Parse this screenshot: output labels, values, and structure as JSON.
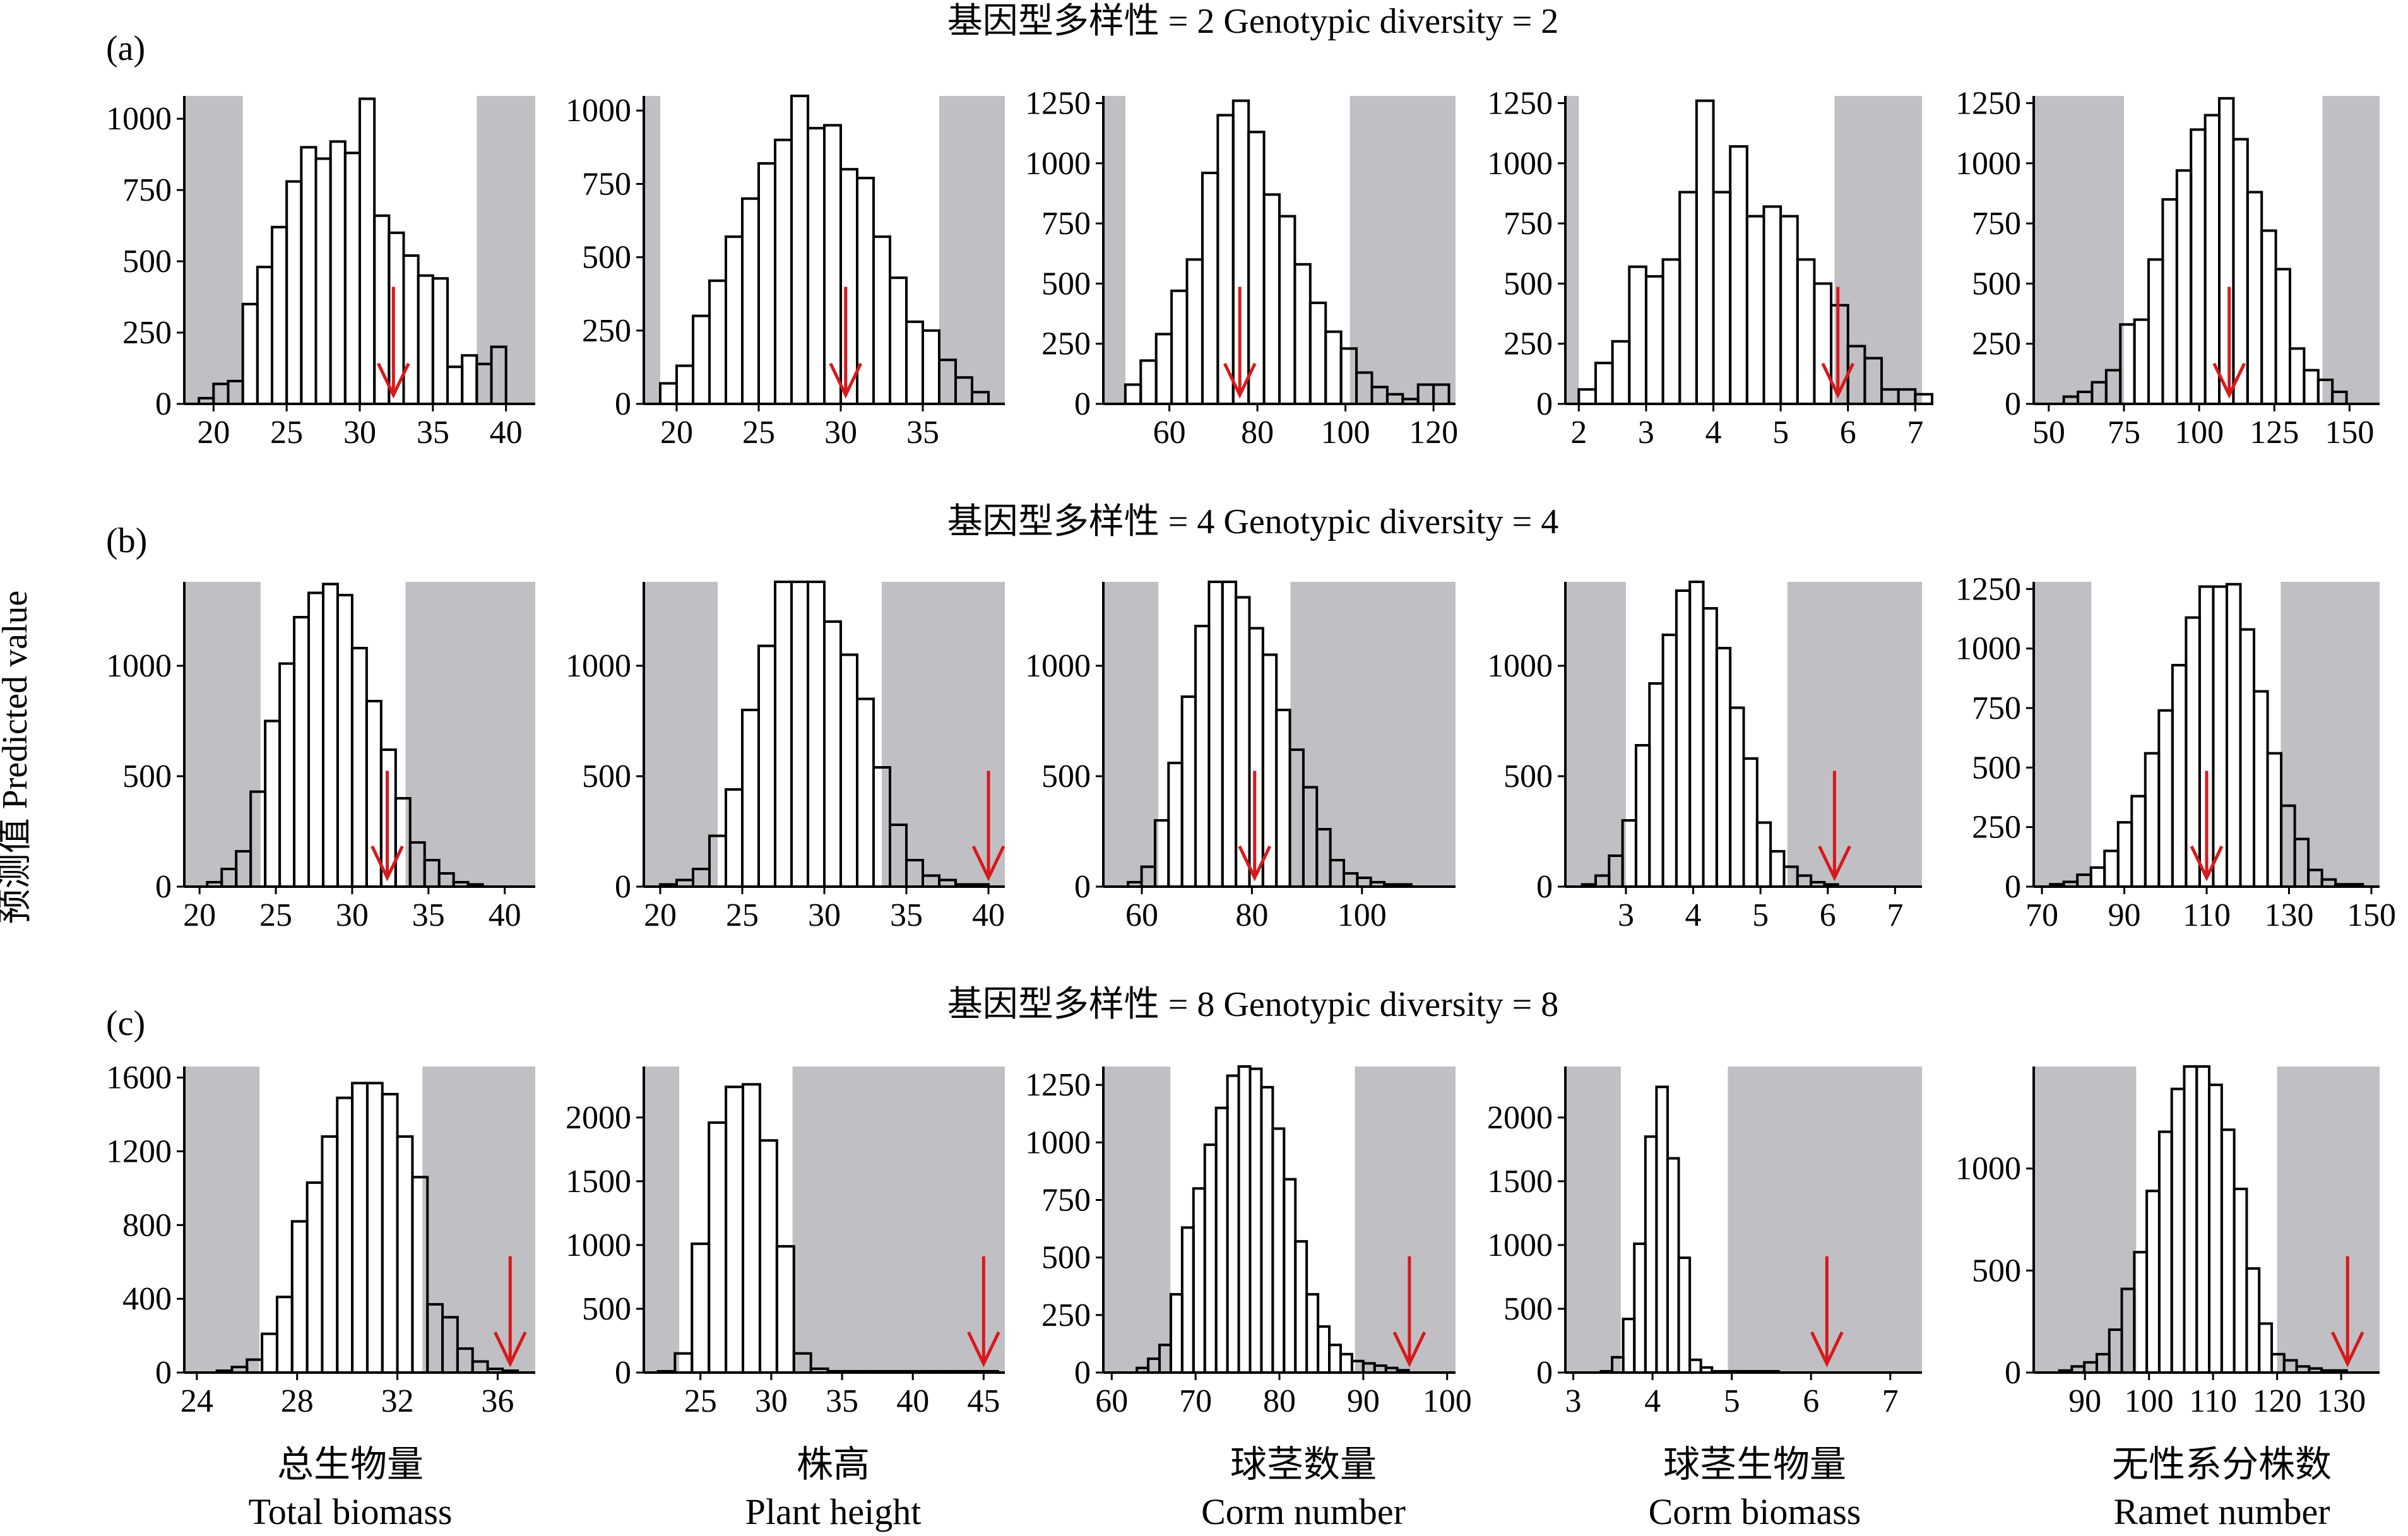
{
  "figure": {
    "ylabel": "预测值 Predicted value",
    "columns": [
      {
        "cn": "总生物量",
        "en": "Total biomass"
      },
      {
        "cn": "株高",
        "en": "Plant height"
      },
      {
        "cn": "球茎数量",
        "en": "Corm number"
      },
      {
        "cn": "球茎生物量",
        "en": "Corm biomass"
      },
      {
        "cn": "无性系分株数",
        "en": "Ramet number"
      }
    ],
    "rows": [
      {
        "label": "(a)",
        "title": "基因型多样性 = 2  Genotypic diversity = 2"
      },
      {
        "label": "(b)",
        "title": "基因型多样性 = 4  Genotypic diversity = 4"
      },
      {
        "label": "(c)",
        "title": "基因型多样性 = 8  Genotypic diversity = 8"
      }
    ],
    "colors": {
      "shade": "#c0bfc3",
      "bar_fill": "#ffffff",
      "bar_stroke": "#000000",
      "arrow": "#d7191c"
    }
  },
  "chart_data": [
    {
      "type": "bar",
      "row": 0,
      "col": 0,
      "xlim": [
        18,
        42
      ],
      "ylim": [
        0,
        1080
      ],
      "xticks": [
        20,
        25,
        30,
        35,
        40
      ],
      "yticks": [
        0,
        250,
        500,
        750,
        1000
      ],
      "shade_left": [
        18,
        22
      ],
      "shade_right": [
        38,
        42
      ],
      "arrow_x": 32.3,
      "bin_start": 19,
      "bin_width": 1,
      "values": [
        20,
        70,
        80,
        350,
        480,
        620,
        780,
        900,
        860,
        920,
        880,
        1070,
        660,
        600,
        520,
        450,
        440,
        130,
        170,
        140,
        200
      ]
    },
    {
      "type": "bar",
      "row": 0,
      "col": 1,
      "xlim": [
        18,
        40
      ],
      "ylim": [
        0,
        1050
      ],
      "xticks": [
        20,
        25,
        30,
        35
      ],
      "yticks": [
        0,
        250,
        500,
        750,
        1000
      ],
      "shade_left": [
        18,
        19
      ],
      "shade_right": [
        36,
        40
      ],
      "arrow_x": 30.3,
      "bin_start": 19,
      "bin_width": 1,
      "values": [
        70,
        130,
        300,
        420,
        570,
        700,
        820,
        900,
        1050,
        940,
        950,
        800,
        770,
        570,
        430,
        280,
        250,
        150,
        90,
        40
      ]
    },
    {
      "type": "bar",
      "row": 0,
      "col": 2,
      "xlim": [
        45,
        125
      ],
      "ylim": [
        0,
        1280
      ],
      "xticks": [
        60,
        80,
        100,
        120
      ],
      "yticks": [
        0,
        250,
        500,
        750,
        1000,
        1250
      ],
      "shade_left": [
        45,
        50
      ],
      "shade_right": [
        101,
        125
      ],
      "arrow_x": 76,
      "bin_start": 50,
      "bin_width": 3.5,
      "values": [
        80,
        180,
        290,
        470,
        600,
        960,
        1200,
        1260,
        1130,
        870,
        780,
        580,
        420,
        300,
        230,
        130,
        70,
        40,
        20,
        80,
        80
      ]
    },
    {
      "type": "bar",
      "row": 0,
      "col": 3,
      "xlim": [
        1.8,
        7.1
      ],
      "ylim": [
        0,
        1280
      ],
      "xticks": [
        2,
        3,
        4,
        5,
        6,
        7
      ],
      "yticks": [
        0,
        250,
        500,
        750,
        1000,
        1250
      ],
      "shade_left": [
        1.8,
        2.0
      ],
      "shade_right": [
        5.8,
        7.1
      ],
      "arrow_x": 5.85,
      "bin_start": 2.0,
      "bin_width": 0.25,
      "values": [
        60,
        170,
        260,
        570,
        530,
        600,
        880,
        1260,
        880,
        1070,
        780,
        820,
        780,
        600,
        500,
        410,
        240,
        190,
        60,
        60,
        40
      ]
    },
    {
      "type": "bar",
      "row": 0,
      "col": 4,
      "xlim": [
        45,
        160
      ],
      "ylim": [
        0,
        1280
      ],
      "xticks": [
        50,
        75,
        100,
        125,
        150
      ],
      "yticks": [
        0,
        250,
        500,
        750,
        1000,
        1250
      ],
      "shade_left": [
        45,
        75
      ],
      "shade_right": [
        141,
        160
      ],
      "arrow_x": 110,
      "bin_start": 55,
      "bin_width": 4.7,
      "values": [
        30,
        50,
        90,
        140,
        330,
        350,
        600,
        850,
        970,
        1140,
        1200,
        1270,
        1100,
        880,
        720,
        560,
        230,
        140,
        100,
        50
      ]
    },
    {
      "type": "bar",
      "row": 1,
      "col": 0,
      "xlim": [
        19,
        42
      ],
      "ylim": [
        0,
        1380
      ],
      "xticks": [
        20,
        25,
        30,
        35,
        40
      ],
      "yticks": [
        0,
        500,
        1000
      ],
      "shade_left": [
        19,
        24
      ],
      "shade_right": [
        33.5,
        42
      ],
      "arrow_x": 32.3,
      "bin_start": 20.5,
      "bin_width": 0.95,
      "values": [
        20,
        80,
        160,
        430,
        750,
        1010,
        1220,
        1330,
        1370,
        1320,
        1080,
        840,
        620,
        400,
        200,
        120,
        60,
        20,
        10
      ]
    },
    {
      "type": "bar",
      "row": 1,
      "col": 1,
      "xlim": [
        19,
        41
      ],
      "ylim": [
        0,
        1380
      ],
      "xticks": [
        20,
        25,
        30,
        35,
        40
      ],
      "yticks": [
        0,
        500,
        1000
      ],
      "shade_left": [
        19,
        23.5
      ],
      "shade_right": [
        33.5,
        41
      ],
      "arrow_x": 40,
      "bin_start": 20,
      "bin_width": 1,
      "values": [
        10,
        30,
        80,
        230,
        440,
        800,
        1090,
        1380,
        1380,
        1380,
        1200,
        1050,
        850,
        540,
        280,
        120,
        50,
        30,
        10,
        10
      ]
    },
    {
      "type": "bar",
      "row": 1,
      "col": 2,
      "xlim": [
        53,
        117
      ],
      "ylim": [
        0,
        1380
      ],
      "xticks": [
        60,
        80,
        100
      ],
      "yticks": [
        0,
        500,
        1000
      ],
      "shade_left": [
        53,
        63
      ],
      "shade_right": [
        87,
        117
      ],
      "arrow_x": 80.5,
      "bin_start": 57.5,
      "bin_width": 2.45,
      "values": [
        20,
        90,
        300,
        560,
        860,
        1180,
        1380,
        1380,
        1310,
        1170,
        1050,
        800,
        620,
        450,
        260,
        120,
        60,
        40,
        20,
        10,
        10
      ]
    },
    {
      "type": "bar",
      "row": 1,
      "col": 3,
      "xlim": [
        2.1,
        7.4
      ],
      "ylim": [
        0,
        1380
      ],
      "xticks": [
        3,
        4,
        5,
        6,
        7
      ],
      "yticks": [
        0,
        500,
        1000
      ],
      "shade_left": [
        2.1,
        3.0
      ],
      "shade_right": [
        5.4,
        7.4
      ],
      "arrow_x": 6.1,
      "bin_start": 2.35,
      "bin_width": 0.2,
      "values": [
        10,
        50,
        140,
        300,
        640,
        920,
        1140,
        1340,
        1380,
        1260,
        1080,
        810,
        580,
        290,
        160,
        90,
        50,
        20,
        10
      ]
    },
    {
      "type": "bar",
      "row": 1,
      "col": 4,
      "xlim": [
        68,
        152
      ],
      "ylim": [
        0,
        1280
      ],
      "xticks": [
        70,
        90,
        110,
        130,
        150
      ],
      "yticks": [
        0,
        250,
        500,
        750,
        1000,
        1250
      ],
      "shade_left": [
        68,
        82
      ],
      "shade_right": [
        128,
        152
      ],
      "arrow_x": 110,
      "bin_start": 72,
      "bin_width": 3.3,
      "values": [
        10,
        20,
        50,
        80,
        150,
        270,
        380,
        560,
        740,
        930,
        1130,
        1260,
        1260,
        1270,
        1080,
        820,
        560,
        340,
        200,
        70,
        30,
        10,
        10
      ]
    },
    {
      "type": "bar",
      "row": 2,
      "col": 0,
      "xlim": [
        23.5,
        37.5
      ],
      "ylim": [
        0,
        1660
      ],
      "xticks": [
        24,
        28,
        32,
        36
      ],
      "yticks": [
        0,
        400,
        800,
        1200,
        1600
      ],
      "shade_left": [
        23.5,
        26.5
      ],
      "shade_right": [
        33,
        37.5
      ],
      "arrow_x": 36.5,
      "bin_start": 24.8,
      "bin_width": 0.6,
      "values": [
        10,
        30,
        70,
        210,
        410,
        820,
        1030,
        1280,
        1490,
        1570,
        1570,
        1510,
        1280,
        1060,
        370,
        300,
        130,
        60,
        20,
        10
      ]
    },
    {
      "type": "bar",
      "row": 2,
      "col": 1,
      "xlim": [
        21,
        46.5
      ],
      "ylim": [
        0,
        2400
      ],
      "xticks": [
        25,
        30,
        35,
        40,
        45
      ],
      "yticks": [
        0,
        500,
        1000,
        1500,
        2000
      ],
      "shade_left": [
        21,
        23.5
      ],
      "shade_right": [
        31.5,
        46.5
      ],
      "arrow_x": 45,
      "bin_start": 22,
      "bin_width": 1.2,
      "values": [
        10,
        150,
        1010,
        1960,
        2240,
        2260,
        1820,
        990,
        150,
        30,
        10,
        10,
        10,
        10,
        10,
        10,
        10,
        10,
        10,
        10
      ]
    },
    {
      "type": "bar",
      "row": 2,
      "col": 2,
      "xlim": [
        59,
        101
      ],
      "ylim": [
        0,
        1330
      ],
      "xticks": [
        60,
        70,
        80,
        90,
        100
      ],
      "yticks": [
        0,
        250,
        500,
        750,
        1000,
        1250
      ],
      "shade_left": [
        59,
        67
      ],
      "shade_right": [
        89,
        101
      ],
      "arrow_x": 95.5,
      "bin_start": 63,
      "bin_width": 1.35,
      "values": [
        20,
        60,
        120,
        340,
        630,
        800,
        990,
        1150,
        1290,
        1330,
        1320,
        1240,
        1060,
        840,
        570,
        340,
        200,
        120,
        80,
        50,
        40,
        30,
        20,
        10
      ]
    },
    {
      "type": "bar",
      "row": 2,
      "col": 3,
      "xlim": [
        2.9,
        7.4
      ],
      "ylim": [
        0,
        2400
      ],
      "xticks": [
        3,
        4,
        5,
        6,
        7
      ],
      "yticks": [
        0,
        500,
        1000,
        1500,
        2000
      ],
      "shade_left": [
        2.9,
        3.6
      ],
      "shade_right": [
        4.95,
        7.4
      ],
      "arrow_x": 6.2,
      "bin_start": 3.35,
      "bin_width": 0.14,
      "values": [
        10,
        120,
        420,
        1010,
        1850,
        2240,
        1680,
        900,
        100,
        40,
        10,
        10,
        10,
        10,
        10,
        10
      ]
    },
    {
      "type": "bar",
      "row": 2,
      "col": 4,
      "xlim": [
        82,
        136
      ],
      "ylim": [
        0,
        1500
      ],
      "xticks": [
        90,
        100,
        110,
        120,
        130
      ],
      "yticks": [
        0,
        500,
        1000
      ],
      "shade_left": [
        82,
        98
      ],
      "shade_right": [
        120,
        136
      ],
      "arrow_x": 131,
      "bin_start": 86,
      "bin_width": 1.95,
      "values": [
        10,
        30,
        50,
        90,
        210,
        410,
        590,
        890,
        1180,
        1390,
        1500,
        1500,
        1410,
        1190,
        900,
        510,
        240,
        90,
        60,
        30,
        20,
        10,
        10
      ]
    }
  ]
}
